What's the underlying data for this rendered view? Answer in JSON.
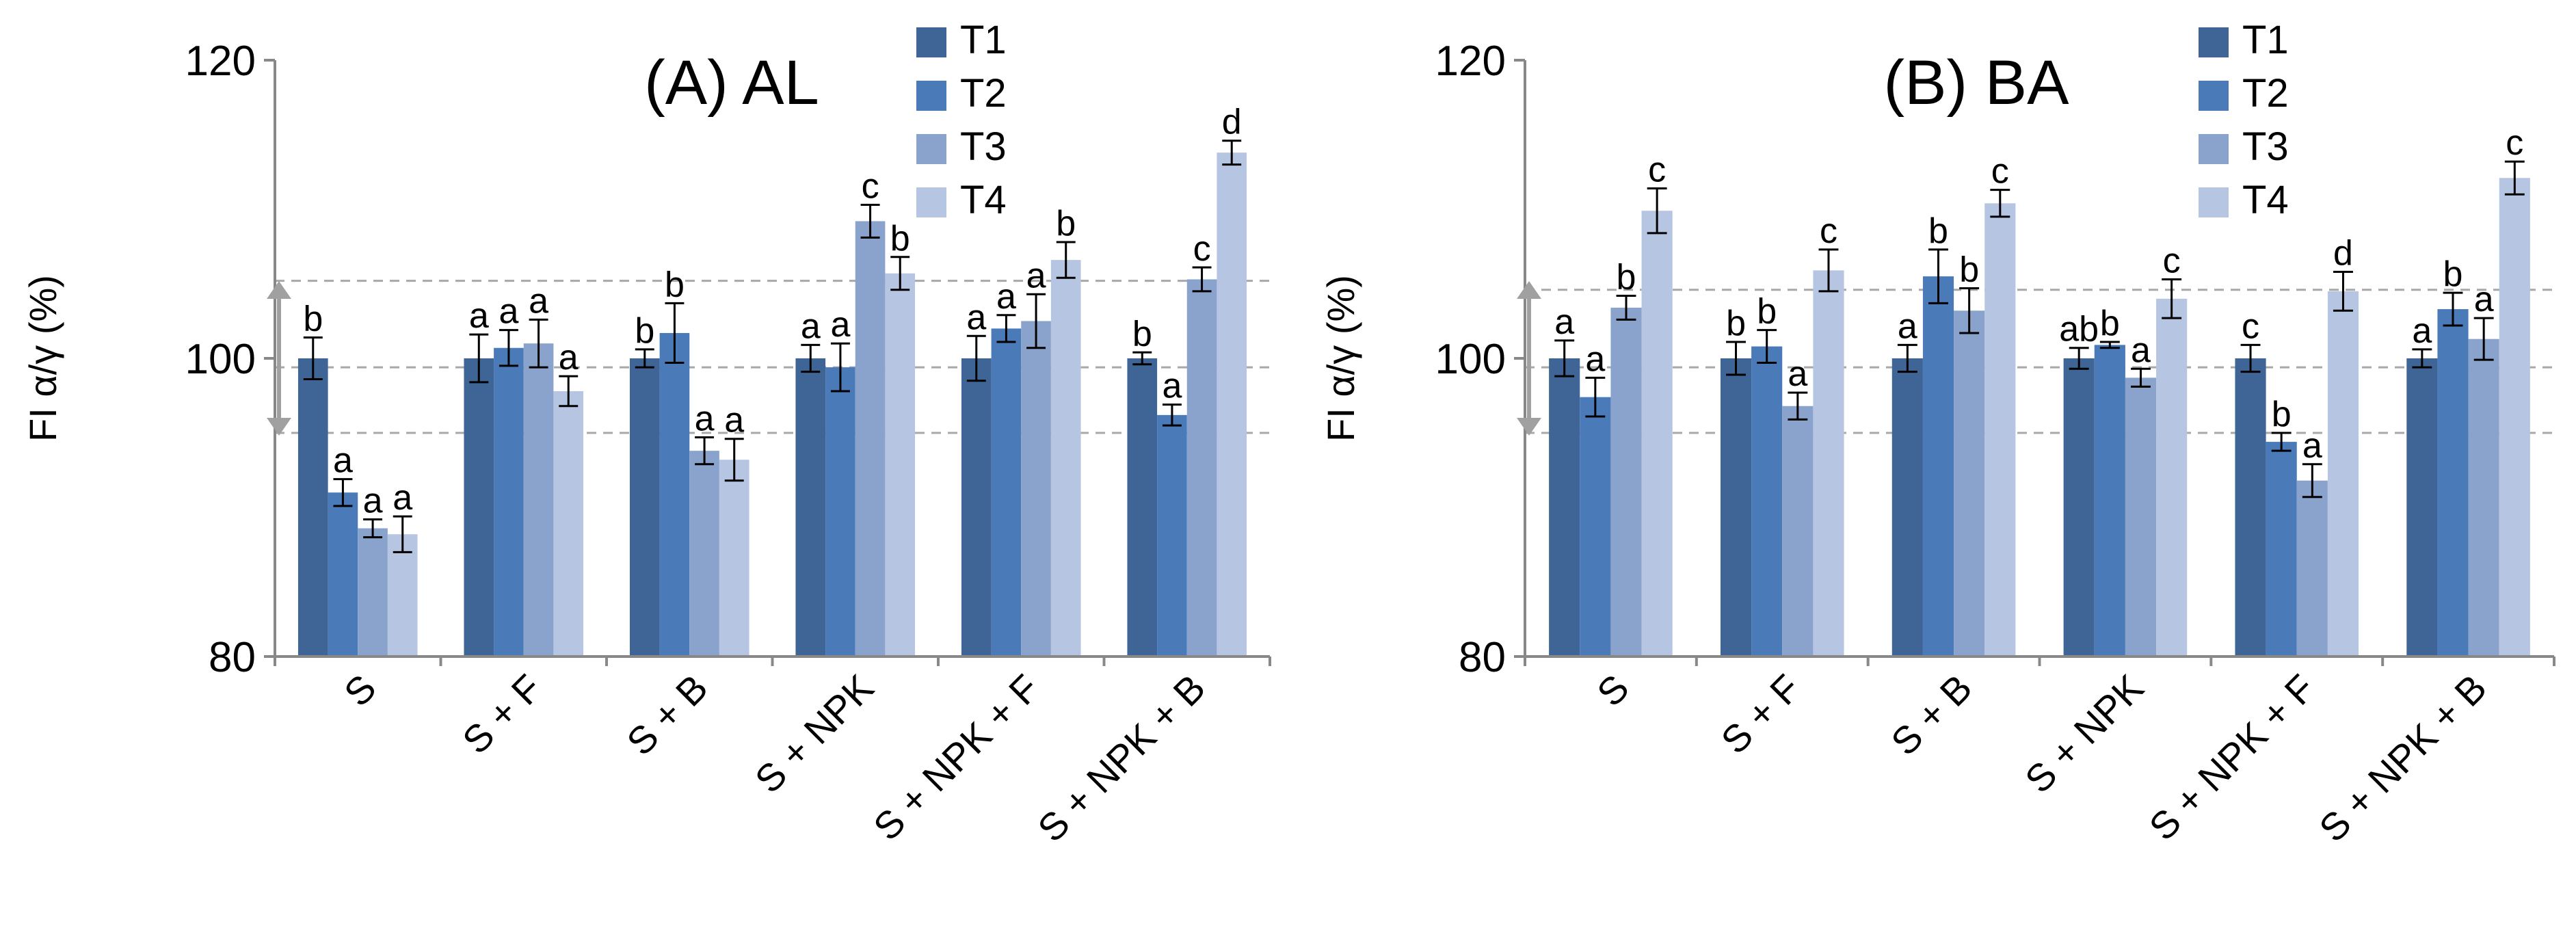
{
  "chart_data": [
    {
      "type": "bar",
      "title": "(A) AL",
      "ylabel": "FI α/γ (%)",
      "xlabel": "",
      "ylim": [
        80,
        120
      ],
      "yticks": [
        80,
        100,
        120
      ],
      "categories": [
        "S",
        "S + F",
        "S + B",
        "S + NPK",
        "S + NPK + F",
        "S + NPK + B"
      ],
      "series": [
        {
          "name": "T1",
          "values": [
            100,
            100,
            100,
            100,
            100,
            100
          ],
          "errors": [
            1.4,
            1.6,
            0.6,
            0.9,
            1.5,
            0.4
          ],
          "letters": [
            "b",
            "a",
            "b",
            "a",
            "a",
            "b"
          ]
        },
        {
          "name": "T2",
          "values": [
            91.0,
            100.7,
            101.7,
            99.4,
            102.0,
            96.2
          ],
          "errors": [
            0.9,
            1.2,
            2.0,
            1.6,
            0.9,
            0.7
          ],
          "letters": [
            "a",
            "a",
            "b",
            "a",
            "a",
            "a"
          ]
        },
        {
          "name": "T3",
          "values": [
            88.6,
            101.0,
            93.8,
            109.2,
            102.5,
            105.3
          ],
          "errors": [
            0.6,
            1.6,
            0.9,
            1.1,
            1.8,
            0.8
          ],
          "letters": [
            "a",
            "a",
            "a",
            "c",
            "a",
            "c"
          ]
        },
        {
          "name": "T4",
          "values": [
            88.2,
            97.8,
            93.2,
            105.7,
            106.6,
            113.8
          ],
          "errors": [
            1.2,
            1.0,
            1.4,
            1.1,
            1.2,
            0.8
          ],
          "letters": [
            "a",
            "a",
            "a",
            "b",
            "b",
            "d"
          ]
        }
      ],
      "reference_lines": [
        95,
        99.4,
        105.2
      ],
      "range_arrow": [
        95,
        105
      ]
    },
    {
      "type": "bar",
      "title": "(B) BA",
      "ylabel": "FI α/γ (%)",
      "xlabel": "",
      "ylim": [
        80,
        120
      ],
      "yticks": [
        80,
        100,
        120
      ],
      "categories": [
        "S",
        "S + F",
        "S + B",
        "S + NPK",
        "S + NPK + F",
        "S + NPK + B"
      ],
      "series": [
        {
          "name": "T1",
          "values": [
            100,
            100,
            100,
            100,
            100,
            100
          ],
          "errors": [
            1.2,
            1.1,
            0.9,
            0.7,
            0.9,
            0.6
          ],
          "letters": [
            "a",
            "b",
            "a",
            "ab",
            "c",
            "a"
          ]
        },
        {
          "name": "T2",
          "values": [
            97.4,
            100.8,
            105.5,
            100.9,
            94.4,
            103.3
          ],
          "errors": [
            1.3,
            1.1,
            1.8,
            0.2,
            0.6,
            1.1
          ],
          "letters": [
            "a",
            "b",
            "b",
            "b",
            "b",
            "b"
          ]
        },
        {
          "name": "T3",
          "values": [
            103.4,
            96.8,
            103.2,
            98.7,
            91.8,
            101.3
          ],
          "errors": [
            0.8,
            0.9,
            1.5,
            0.6,
            1.1,
            1.4
          ],
          "letters": [
            "b",
            "a",
            "b",
            "a",
            "a",
            "a"
          ]
        },
        {
          "name": "T4",
          "values": [
            109.9,
            105.9,
            110.4,
            104.0,
            104.5,
            112.1
          ],
          "errors": [
            1.5,
            1.4,
            0.9,
            1.3,
            1.3,
            1.1
          ],
          "letters": [
            "c",
            "c",
            "c",
            "c",
            "d",
            "c"
          ]
        }
      ],
      "reference_lines": [
        95,
        99.4,
        104.6
      ],
      "range_arrow": [
        95,
        105
      ]
    }
  ],
  "colors": {
    "T1": "#3e6596",
    "T2": "#4a7ab8",
    "T3": "#8aa3cd",
    "T4": "#b6c5e2",
    "axis": "#888888",
    "reference": "#a8a8a8",
    "arrow": "#a0a0a0"
  }
}
